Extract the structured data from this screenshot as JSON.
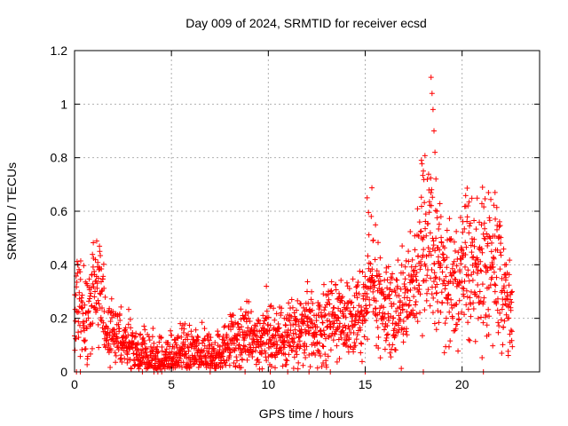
{
  "chart_data": {
    "type": "scatter",
    "title": "Day 009 of 2024, SRMTID for receiver ecsd",
    "xlabel": "GPS time / hours",
    "ylabel": "SRMTID / TECUs",
    "xlim": [
      0,
      24
    ],
    "ylim": [
      0,
      1.2
    ],
    "xticks": [
      0,
      5,
      10,
      15,
      20
    ],
    "yticks": [
      0,
      0.2,
      0.4,
      0.6,
      0.8,
      1,
      1.2
    ],
    "xtick_labels": [
      "0",
      "5",
      "10",
      "15",
      "20"
    ],
    "ytick_labels": [
      "0",
      "0.2",
      "0.4",
      "0.6",
      "0.8",
      "1",
      "1.2"
    ],
    "grid": true,
    "marker": "+",
    "series": [
      {
        "name": "SRMTID",
        "color": "#ff0000",
        "trend_x": [
          0.0,
          0.2,
          0.5,
          0.8,
          1.0,
          1.3,
          1.6,
          2.0,
          2.5,
          3.0,
          3.5,
          4.0,
          4.5,
          5.0,
          5.5,
          6.0,
          6.5,
          7.0,
          7.5,
          8.0,
          8.5,
          9.0,
          9.5,
          10.0,
          10.5,
          11.0,
          11.5,
          12.0,
          12.5,
          13.0,
          13.5,
          14.0,
          14.5,
          15.0,
          15.3,
          15.6,
          16.0,
          16.5,
          17.0,
          17.5,
          17.8,
          18.0,
          18.3,
          18.6,
          19.0,
          19.5,
          20.0,
          20.3,
          20.6,
          21.0,
          21.4,
          21.8,
          22.2,
          22.6
        ],
        "trend_y": [
          0.22,
          0.26,
          0.2,
          0.22,
          0.3,
          0.35,
          0.16,
          0.14,
          0.12,
          0.09,
          0.07,
          0.06,
          0.05,
          0.05,
          0.07,
          0.08,
          0.07,
          0.06,
          0.07,
          0.1,
          0.14,
          0.12,
          0.13,
          0.15,
          0.12,
          0.13,
          0.15,
          0.17,
          0.16,
          0.17,
          0.19,
          0.2,
          0.18,
          0.24,
          0.36,
          0.3,
          0.24,
          0.22,
          0.26,
          0.3,
          0.38,
          0.44,
          0.5,
          0.42,
          0.35,
          0.3,
          0.38,
          0.45,
          0.36,
          0.4,
          0.42,
          0.4,
          0.26,
          0.22
        ],
        "spikes": [
          {
            "x": 15.1,
            "y": 0.65
          },
          {
            "x": 15.4,
            "y": 0.49
          },
          {
            "x": 17.9,
            "y": 0.79
          },
          {
            "x": 18.0,
            "y": 0.75
          },
          {
            "x": 18.4,
            "y": 1.1
          },
          {
            "x": 18.45,
            "y": 1.04
          },
          {
            "x": 18.5,
            "y": 0.98
          },
          {
            "x": 18.55,
            "y": 0.9
          },
          {
            "x": 18.6,
            "y": 0.82
          },
          {
            "x": 18.65,
            "y": 0.72
          },
          {
            "x": 18.7,
            "y": 0.6
          },
          {
            "x": 9.9,
            "y": 0.32
          },
          {
            "x": 21.7,
            "y": 0.67
          },
          {
            "x": 20.3,
            "y": 0.62
          },
          {
            "x": 1.3,
            "y": 0.45
          }
        ],
        "zero_x": [
          0.1,
          0.3,
          3.5,
          4.1,
          4.3,
          4.5,
          7.0,
          8.8,
          10.1,
          11.0,
          12.1,
          13.2,
          15.0,
          18.0,
          21.1
        ]
      }
    ]
  }
}
